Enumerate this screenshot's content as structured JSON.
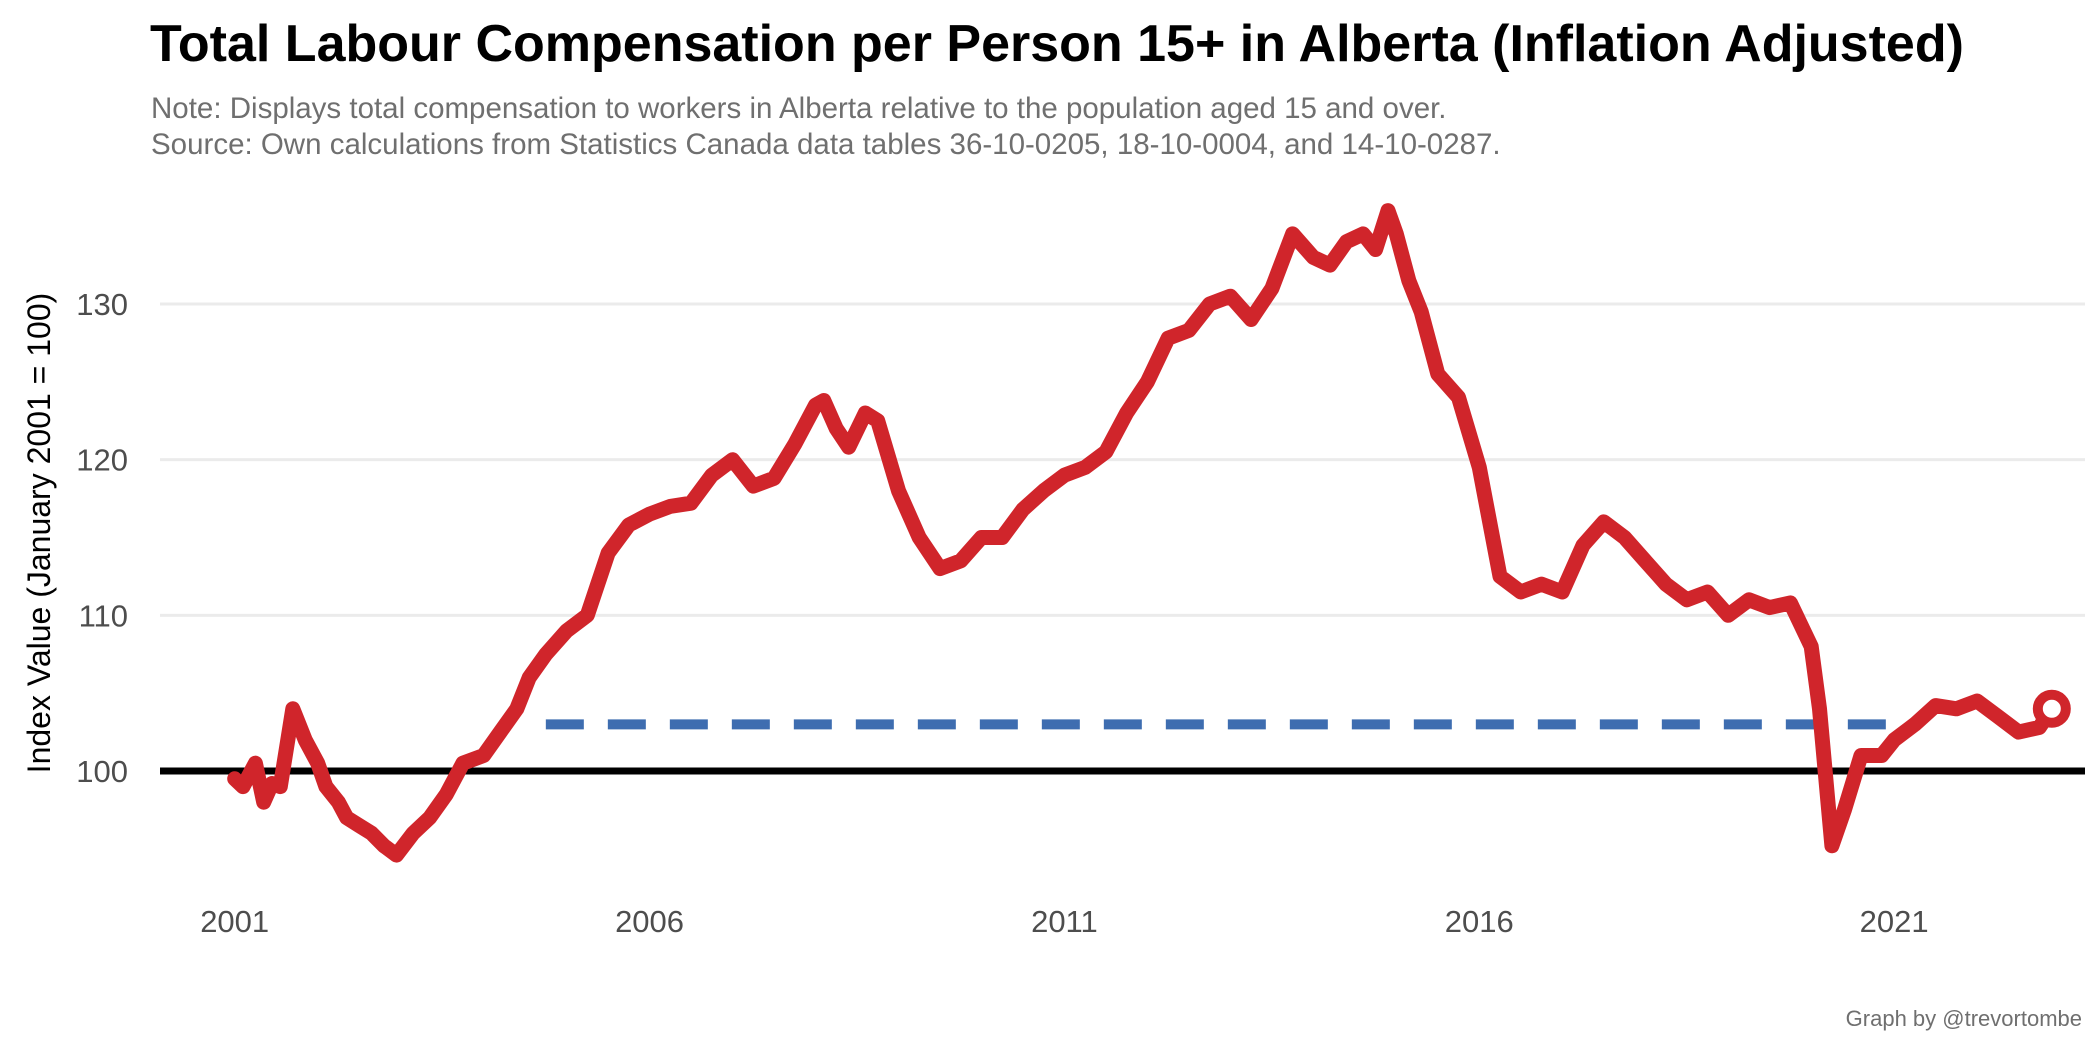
{
  "header": {
    "title": "Total Labour Compensation per Person 15+ in Alberta (Inflation Adjusted)",
    "note": "Note: Displays total compensation to workers in Alberta relative to the population aged 15 and over.",
    "source": "Source: Own calculations from Statistics Canada data tables 36-10-0205, 18-10-0004, and 14-10-0287."
  },
  "footer": {
    "credit": "Graph by @trevortombe"
  },
  "chart_data": {
    "type": "line",
    "title": "Total Labour Compensation per Person 15+ in Alberta (Inflation Adjusted)",
    "ylabel": "Index Value (January 2001 = 100)",
    "xlabel": "",
    "xlim": [
      2000.1,
      2023.3
    ],
    "ylim": [
      93,
      137
    ],
    "x_ticks": [
      2001,
      2006,
      2011,
      2016,
      2021
    ],
    "x_tick_labels": [
      "2001",
      "2006",
      "2011",
      "2016",
      "2021"
    ],
    "y_ticks": [
      100,
      110,
      120,
      130
    ],
    "y_tick_labels": [
      "100",
      "110",
      "120",
      "130"
    ],
    "grid": "horizontal major",
    "legend": "none",
    "colors": {
      "series": "#d0252b",
      "reference": "#3e6db0",
      "baseline": "#000000",
      "grid": "#ebebeb"
    },
    "series": [
      {
        "x": [
          2001.0,
          2001.1,
          2001.25,
          2001.35,
          2001.45,
          2001.55,
          2001.7,
          2001.85,
          2002.0,
          2002.1,
          2002.25,
          2002.35,
          2002.5,
          2002.65,
          2002.8,
          2002.95,
          2003.15,
          2003.35,
          2003.55,
          2003.75,
          2004.0,
          2004.2,
          2004.4,
          2004.55,
          2004.75,
          2005.0,
          2005.25,
          2005.5,
          2005.75,
          2006.0,
          2006.25,
          2006.5,
          2006.75,
          2007.0,
          2007.25,
          2007.5,
          2007.75,
          2008.0,
          2008.1,
          2008.25,
          2008.4,
          2008.6,
          2008.75,
          2009.0,
          2009.25,
          2009.5,
          2009.75,
          2010.0,
          2010.25,
          2010.5,
          2010.75,
          2011.0,
          2011.25,
          2011.5,
          2011.75,
          2012.0,
          2012.25,
          2012.5,
          2012.75,
          2013.0,
          2013.25,
          2013.5,
          2013.75,
          2014.0,
          2014.2,
          2014.4,
          2014.6,
          2014.75,
          2014.9,
          2015.0,
          2015.15,
          2015.3,
          2015.5,
          2015.75,
          2016.0,
          2016.25,
          2016.5,
          2016.75,
          2017.0,
          2017.25,
          2017.5,
          2017.75,
          2018.0,
          2018.25,
          2018.5,
          2018.75,
          2019.0,
          2019.25,
          2019.5,
          2019.75,
          2020.0,
          2020.1,
          2020.25,
          2020.4,
          2020.6,
          2020.85,
          2021.0,
          2021.25,
          2021.5,
          2021.75,
          2022.0,
          2022.25,
          2022.5,
          2022.75,
          2022.9
        ],
        "y": [
          99.5,
          99.0,
          100.5,
          98.0,
          99.2,
          99.0,
          104.0,
          102.0,
          100.5,
          99.0,
          98.0,
          97.0,
          96.5,
          96.0,
          95.2,
          94.6,
          96.0,
          97.0,
          98.5,
          100.5,
          101.0,
          102.5,
          104.0,
          106.0,
          107.5,
          109.0,
          110.0,
          114.0,
          115.8,
          116.5,
          117.0,
          117.2,
          119.0,
          120.0,
          118.3,
          118.8,
          121.0,
          123.5,
          123.8,
          122.0,
          120.8,
          123.0,
          122.5,
          118.0,
          115.0,
          113.0,
          113.5,
          115.0,
          115.0,
          116.8,
          118.0,
          119.0,
          119.5,
          120.5,
          123.0,
          125.0,
          127.8,
          128.3,
          130.0,
          130.5,
          129.0,
          131.0,
          134.5,
          133.0,
          132.5,
          134.0,
          134.5,
          133.5,
          136.0,
          134.5,
          131.5,
          129.5,
          125.5,
          124.0,
          119.5,
          112.5,
          111.5,
          112.0,
          111.5,
          114.5,
          116.0,
          115.0,
          113.5,
          112.0,
          111.0,
          111.5,
          110.0,
          111.0,
          110.5,
          110.8,
          108.0,
          104.0,
          95.2,
          97.5,
          101.0,
          101.0,
          102.0,
          103.0,
          104.2,
          104.0,
          104.5,
          103.5,
          102.5,
          102.8,
          104.0
        ]
      }
    ],
    "reference_line": {
      "value": 103,
      "x_start": 2004.75,
      "x_end": 2021.0,
      "style": "dashed"
    },
    "baseline": {
      "value": 100,
      "style": "solid"
    }
  }
}
